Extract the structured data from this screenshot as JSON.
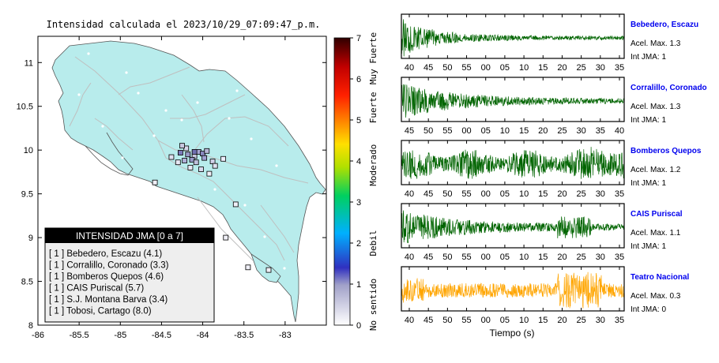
{
  "map": {
    "title": "Intensidad calculada el 2023/10/29_07:09:47_p.m.",
    "x_ticks": [
      "-86",
      "-85.5",
      "-85",
      "-84.5",
      "-84",
      "-83.5",
      "-83"
    ],
    "y_ticks": [
      "11",
      "10.5",
      "10",
      "9.5",
      "9",
      "8.5",
      "8"
    ],
    "xlim": [
      -86,
      -82.5
    ],
    "ylim": [
      8,
      11.3
    ],
    "land_color": "#b8ecec",
    "stations": [
      {
        "lon": -84.27,
        "lat": 9.97,
        "color": "#7a7ab8"
      },
      {
        "lon": -84.18,
        "lat": 9.95,
        "color": "#9a9ac8"
      },
      {
        "lon": -84.1,
        "lat": 9.93,
        "color": "#c8c8e0"
      },
      {
        "lon": -84.05,
        "lat": 9.98,
        "color": "#a8a8d4"
      },
      {
        "lon": -84.0,
        "lat": 9.96,
        "color": "#8a8ac0"
      },
      {
        "lon": -83.95,
        "lat": 9.99,
        "color": "#b8b8d8"
      },
      {
        "lon": -84.13,
        "lat": 9.89,
        "color": "#9898c8"
      },
      {
        "lon": -84.08,
        "lat": 9.86,
        "color": "#c0c0dc"
      },
      {
        "lon": -83.98,
        "lat": 9.91,
        "color": "#a0a0d0"
      },
      {
        "lon": -84.22,
        "lat": 9.88,
        "color": "#b0b0d8"
      },
      {
        "lon": -83.88,
        "lat": 9.87,
        "color": "#d0d0e8"
      },
      {
        "lon": -83.85,
        "lat": 9.82,
        "color": "#e0e0f0"
      },
      {
        "lon": -84.02,
        "lat": 9.78,
        "color": "#d8d8ec"
      },
      {
        "lon": -84.15,
        "lat": 9.8,
        "color": "#e8e8f4"
      },
      {
        "lon": -84.38,
        "lat": 9.92,
        "color": "#e0e0f0"
      },
      {
        "lon": -84.3,
        "lat": 9.86,
        "color": "#e8e8f4"
      },
      {
        "lon": -84.2,
        "lat": 10.02,
        "color": "#d8d8ec"
      },
      {
        "lon": -83.75,
        "lat": 9.9,
        "color": "#eeeeff"
      },
      {
        "lon": -83.92,
        "lat": 9.73,
        "color": "#f0f0f8"
      },
      {
        "lon": -84.58,
        "lat": 9.63,
        "color": "#f0f0f8"
      },
      {
        "lon": -83.6,
        "lat": 9.38,
        "color": "#f0f0f8"
      },
      {
        "lon": -83.72,
        "lat": 9.0,
        "color": "#f0f0f8"
      },
      {
        "lon": -83.45,
        "lat": 8.66,
        "color": "#f0f0f8"
      },
      {
        "lon": -83.2,
        "lat": 8.63,
        "color": "#f0f0f8"
      },
      {
        "lon": -84.25,
        "lat": 10.05,
        "color": "#c8c8e0"
      },
      {
        "lon": -84.1,
        "lat": 9.98,
        "color": "#7070b0"
      }
    ],
    "colorbar": {
      "ticks": [
        "0",
        "1",
        "2",
        "3",
        "4",
        "5",
        "6",
        "7"
      ],
      "labels": [
        "No sentido",
        "Debil",
        "Moderado",
        "Fuerte",
        "Muy Fuerte"
      ]
    },
    "legend": {
      "title": "INTENSIDAD JMA [0 a 7]",
      "entries": [
        "[ 1 ]  Bebedero, Escazu (4.1)",
        "[ 1 ]  Corralillo, Coronado (3.3)",
        "[ 1 ]  Bomberos Quepos (4.6)",
        "[ 1 ]  CAIS Puriscal (5.7)",
        "[ 1 ]  S.J. Montana Barva (3.4)",
        "[ 1 ]  Tobosi, Cartago (8.0)"
      ]
    }
  },
  "chart_data": [
    {
      "type": "line",
      "name": "Bebedero, Escazu",
      "acel": "Acel. Max. 1.3",
      "int": "Int JMA: 1",
      "color": "#006400",
      "x_ticks": [
        "40",
        "45",
        "50",
        "55",
        "00",
        "05",
        "10",
        "15",
        "20",
        "25",
        "30",
        "35"
      ],
      "envelope": "decay-early"
    },
    {
      "type": "line",
      "name": "Corralillo, Coronado",
      "acel": "Acel. Max. 1.3",
      "int": "Int JMA: 1",
      "color": "#006400",
      "x_ticks": [
        "45",
        "50",
        "55",
        "00",
        "05",
        "10",
        "15",
        "20",
        "25",
        "30",
        "35",
        "40"
      ],
      "envelope": "decay-mid"
    },
    {
      "type": "line",
      "name": "Bomberos Quepos",
      "acel": "Acel. Max. 1.2",
      "int": "Int JMA: 1",
      "color": "#006400",
      "x_ticks": [
        "40",
        "45",
        "50",
        "55",
        "00",
        "05",
        "10",
        "15",
        "20",
        "25",
        "30",
        "35"
      ],
      "envelope": "steady"
    },
    {
      "type": "line",
      "name": "CAIS Puriscal",
      "acel": "Acel. Max. 1.1",
      "int": "Int JMA: 1",
      "color": "#006400",
      "x_ticks": [
        "40",
        "45",
        "50",
        "55",
        "00",
        "05",
        "10",
        "15",
        "20",
        "25",
        "30",
        "35"
      ],
      "envelope": "decay-late"
    },
    {
      "type": "line",
      "name": "Teatro Nacional",
      "acel": "Acel. Max. 0.3",
      "int": "Int JMA: 0",
      "color": "#ffa500",
      "x_ticks": [
        "40",
        "45",
        "50",
        "55",
        "00",
        "05",
        "10",
        "15",
        "20",
        "25",
        "30",
        "35"
      ],
      "envelope": "noise-burst"
    }
  ],
  "xlabel": "Tiempo (s)"
}
